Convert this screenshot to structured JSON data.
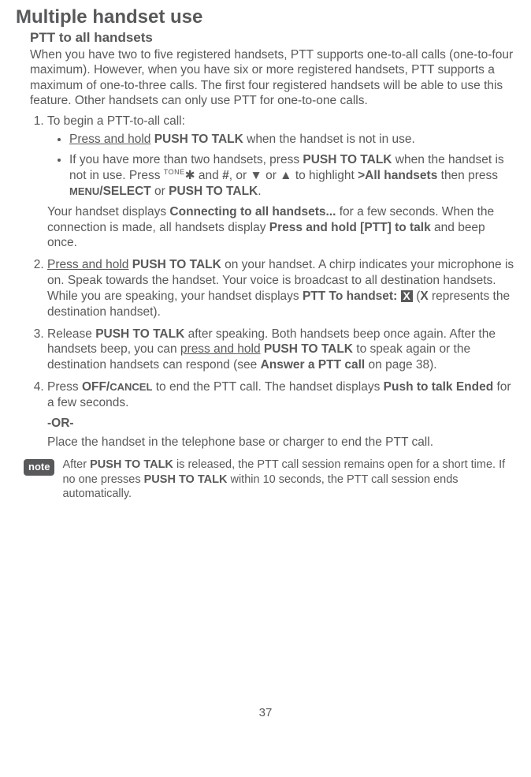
{
  "title": "Multiple handset use",
  "subtitle": "PTT to all handsets",
  "intro": "When you have two to five registered handsets, PTT supports one-to-all calls (one-to-four maximum). However, when you have six or more registered handsets, PTT supports a maximum of one-to-three calls. The first four registered handsets will be able to use this feature. Other handsets can only use PTT for one-to-one calls.",
  "step1": {
    "lead": "To begin a PTT-to-all call:",
    "bullet1_a": "Press and hold",
    "bullet1_b": " PUSH TO TALK",
    "bullet1_c": " when the handset is not in use.",
    "bullet2_a": "If you have more than two handsets, press ",
    "bullet2_b": "PUSH TO TALK",
    "bullet2_c": " when the handset is not in use. Press ",
    "bullet2_tone": "TONE",
    "bullet2_star": "✱",
    "bullet2_d": " and ",
    "bullet2_hash": "#",
    "bullet2_e": ", or ",
    "bullet2_down": "▼",
    "bullet2_f": " or ",
    "bullet2_up": "▲",
    "bullet2_g": " to highlight ",
    "bullet2_h": ">All handsets",
    "bullet2_i": " then press ",
    "bullet2_menu": "MENU",
    "bullet2_select": "/SELECT",
    "bullet2_j": " or ",
    "bullet2_k": "PUSH TO TALK",
    "bullet2_l": ".",
    "follow_a": "Your handset displays ",
    "follow_b": "Connecting to all handsets...",
    "follow_c": " for a few seconds. When the connection is made, all handsets display ",
    "follow_d": "Press and hold [PTT] to talk",
    "follow_e": " and beep once."
  },
  "step2": {
    "a": "Press and hold",
    "b": " PUSH TO TALK",
    "c": " on your handset. A chirp indicates your microphone is on. Speak towards the handset. Your voice is broadcast to all destination handsets.",
    "d": "While you are speaking, your handset displays ",
    "e": "PTT To handset: ",
    "x": "X",
    "f": " (",
    "g": "X",
    "h": " represents the destination handset)."
  },
  "step3": {
    "a": "Release ",
    "b": "PUSH TO TALK",
    "c": " after speaking. Both handsets beep once again. After the handsets beep, you can ",
    "d": "press and hold",
    "e": " PUSH TO TALK",
    "f": " to speak again or the destination handsets can respond (see ",
    "g": "Answer a PTT call",
    "h": " on page 38)."
  },
  "step4": {
    "a": "Press ",
    "b": "OFF/",
    "cancel": "CANCEL",
    "c": " to end the PTT call. The handset displays ",
    "d": "Push to talk Ended",
    "e": " for a few seconds.",
    "or": "-OR-",
    "f": "Place the handset in the telephone base or charger to end the PTT call."
  },
  "note": {
    "badge": "note",
    "a": "After ",
    "b": "PUSH TO TALK",
    "c": " is released, the PTT call session remains open for a short time. If no one presses ",
    "d": "PUSH TO TALK",
    "e": " within 10 seconds, the PTT call session ends automatically."
  },
  "pageNumber": "37"
}
